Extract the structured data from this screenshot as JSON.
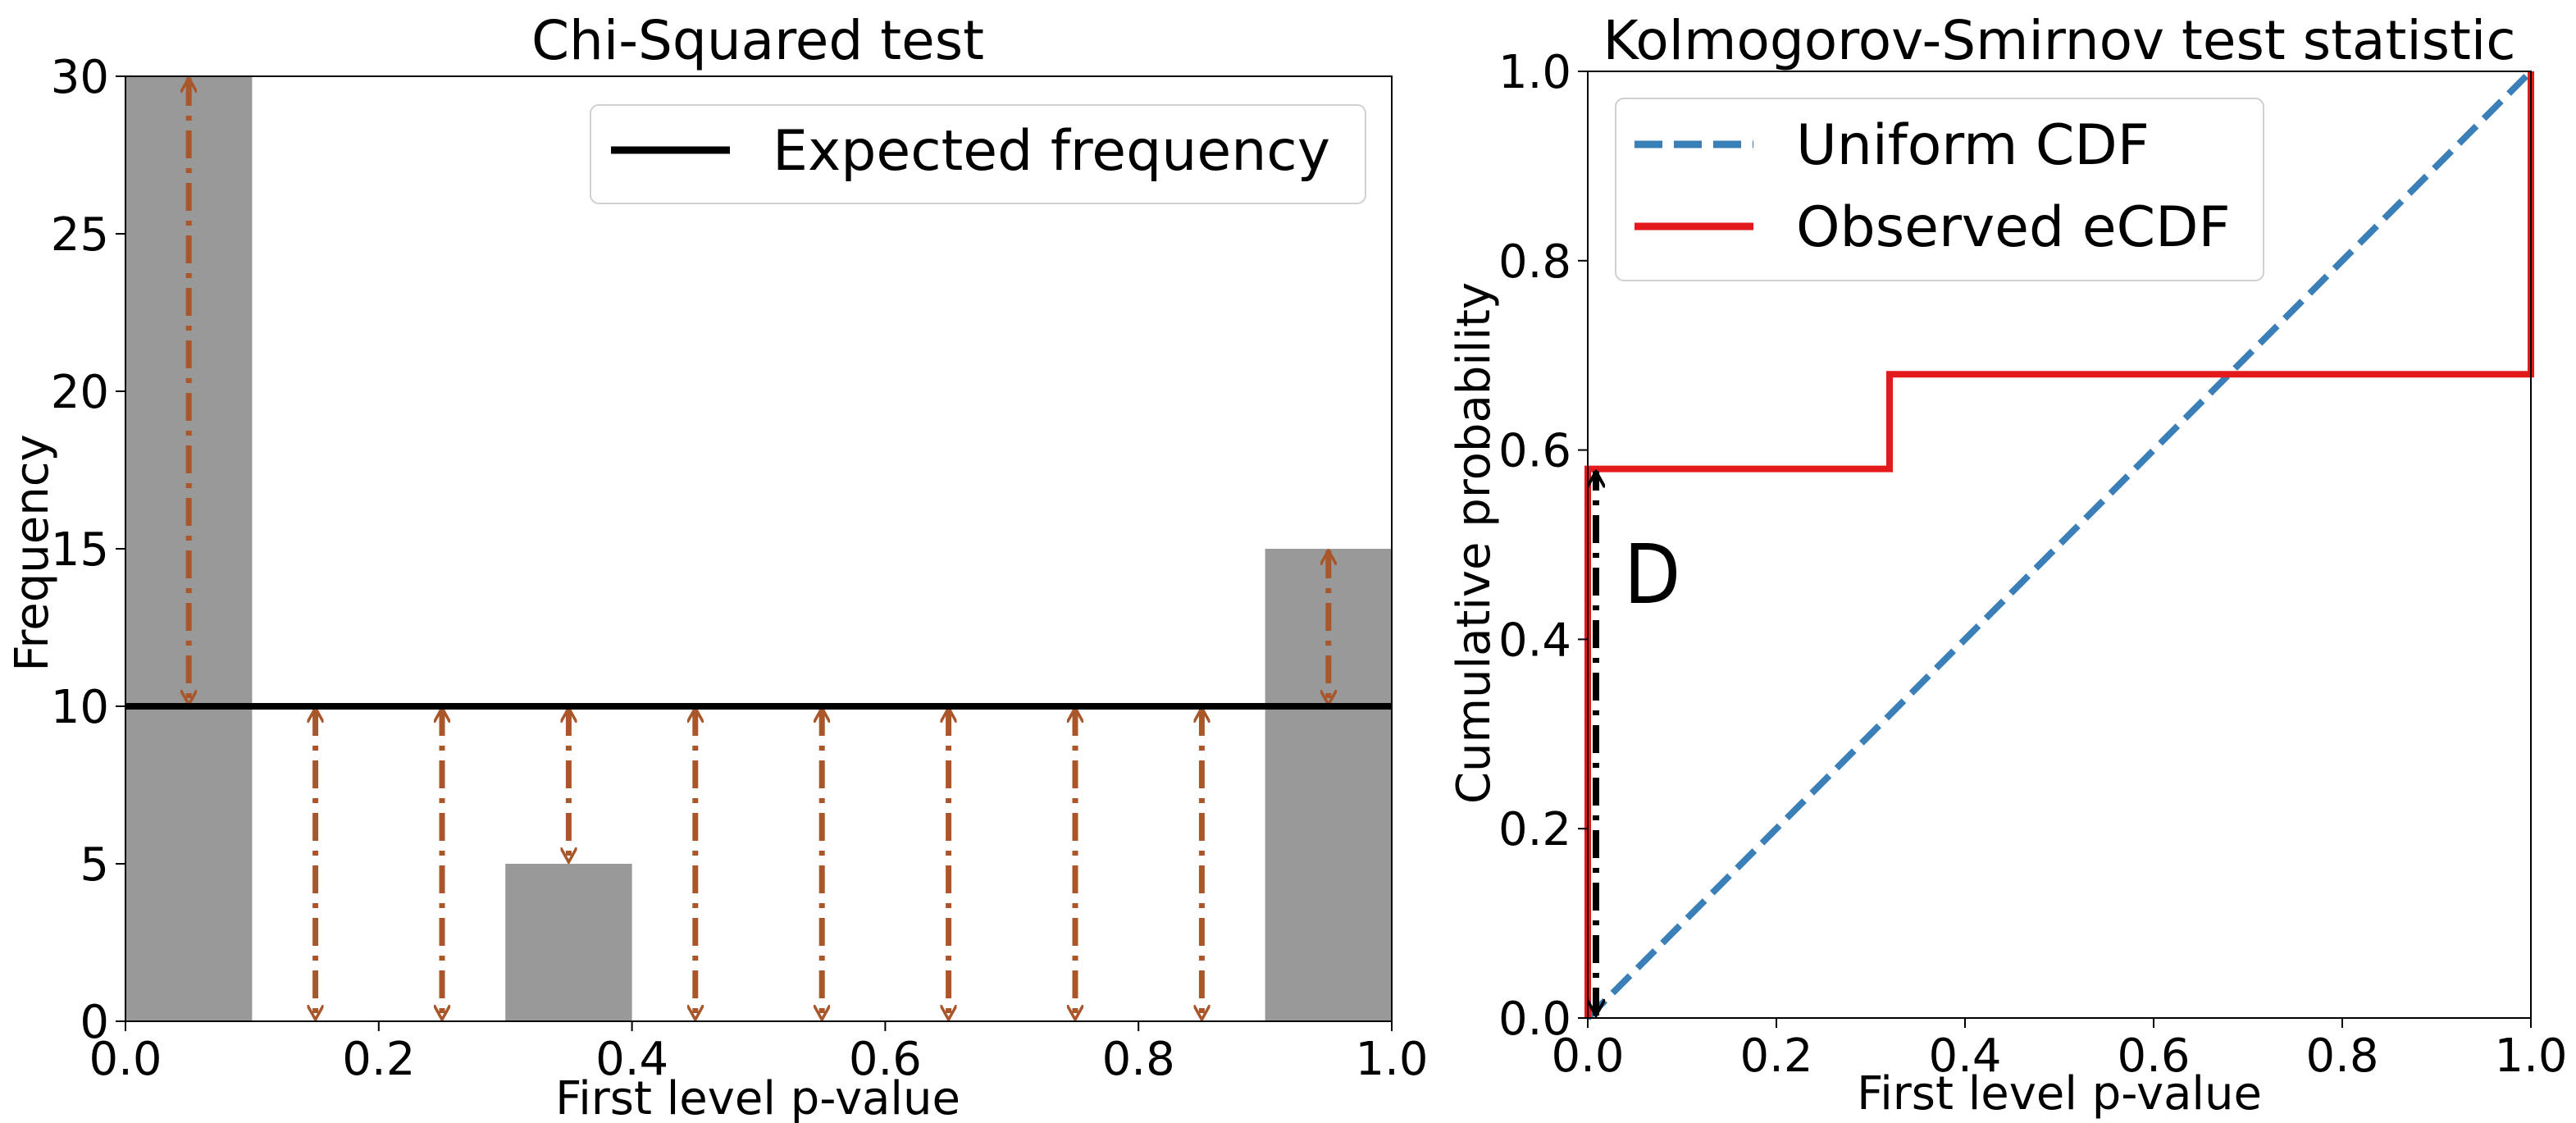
{
  "chart_data": [
    {
      "type": "bar",
      "title": "Chi-Squared test",
      "xlabel": "First level p-value",
      "ylabel": "Frequency",
      "xlim": [
        0.0,
        1.0
      ],
      "ylim": [
        0,
        30
      ],
      "xticks": [
        "0.0",
        "0.2",
        "0.4",
        "0.6",
        "0.8",
        "1.0"
      ],
      "yticks": [
        "0",
        "5",
        "10",
        "15",
        "20",
        "25",
        "30"
      ],
      "bin_width": 0.1,
      "bins": [
        0.0,
        0.1,
        0.2,
        0.3,
        0.4,
        0.5,
        0.6,
        0.7,
        0.8,
        0.9
      ],
      "values": [
        30,
        0,
        0,
        5,
        0,
        0,
        0,
        0,
        0,
        15
      ],
      "expected": 10,
      "bar_color": "#999999",
      "expected_color": "#000000",
      "arrow_color": "#a9562b",
      "legend": {
        "position": "top-right",
        "entries": [
          {
            "label": "Expected frequency",
            "style": "solid"
          }
        ]
      },
      "grid": false
    },
    {
      "type": "line",
      "title": "Kolmogorov-Smirnov test statistic",
      "xlabel": "First level p-value",
      "ylabel": "Cumulative probability",
      "xlim": [
        0.0,
        1.0
      ],
      "ylim": [
        0.0,
        1.0
      ],
      "xticks": [
        "0.0",
        "0.2",
        "0.4",
        "0.6",
        "0.8",
        "1.0"
      ],
      "yticks": [
        "0.0",
        "0.2",
        "0.4",
        "0.6",
        "0.8",
        "1.0"
      ],
      "series": [
        {
          "name": "Uniform CDF",
          "style": "dashed",
          "color": "#3a7fb8",
          "x": [
            0.0,
            1.0
          ],
          "y": [
            0.0,
            1.0
          ]
        },
        {
          "name": "Observed eCDF",
          "style": "step",
          "color": "#e31a1c",
          "x": [
            0.0,
            0.0,
            0.32,
            0.32,
            1.0,
            1.0
          ],
          "y": [
            0.0,
            0.58,
            0.58,
            0.68,
            0.68,
            1.0
          ]
        }
      ],
      "annotation": {
        "text": "D",
        "x": 0.0,
        "y_from": 0.0,
        "y_to": 0.58,
        "color": "#000000"
      },
      "legend": {
        "position": "top-left",
        "entries": [
          {
            "label": "Uniform CDF",
            "style": "dashed"
          },
          {
            "label": "Observed eCDF",
            "style": "solid"
          }
        ]
      },
      "grid": false
    }
  ]
}
